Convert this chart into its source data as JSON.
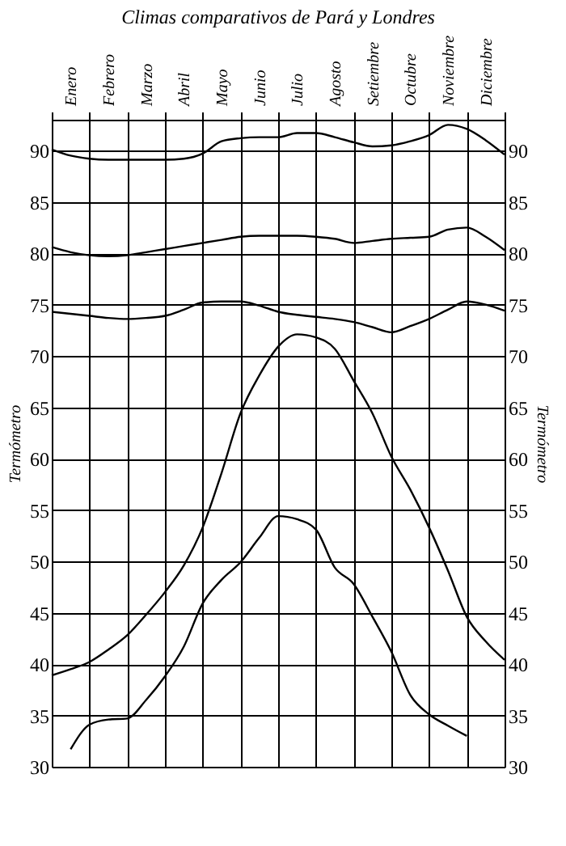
{
  "chart_data": {
    "type": "line",
    "title": "Climas comparativos de Pará y Londres",
    "ylabel": "Termómetro",
    "y2label": "Termómetro",
    "categories": [
      null,
      "Enero",
      null,
      "Febrero",
      null,
      "Marzo",
      null,
      "Abril",
      null,
      "Mayo",
      null,
      "Junio",
      null,
      "Julio",
      null,
      "Agosto",
      null,
      "Setiembre",
      null,
      "Octubre",
      null,
      "Noviembre",
      null,
      "Diciembre",
      null
    ],
    "ylim": [
      30,
      93
    ],
    "yticks": [
      30,
      35,
      40,
      45,
      50,
      55,
      60,
      65,
      70,
      75,
      80,
      85,
      90
    ],
    "y2lim": [
      30,
      93
    ],
    "y2ticks": [
      30,
      35,
      40,
      45,
      50,
      55,
      60,
      65,
      70,
      75,
      80,
      85,
      90
    ],
    "grid": true,
    "marker": "none",
    "line_style": "solid",
    "series": [
      {
        "color": "#000000",
        "values": [
          90.1,
          89.5,
          89.2,
          89.1,
          89.1,
          89.1,
          89.1,
          89.2,
          89.7,
          90.9,
          91.2,
          91.3,
          91.3,
          91.7,
          91.7,
          91.3,
          90.8,
          90.4,
          90.5,
          90.9,
          91.5,
          92.5,
          92.1,
          91.0,
          89.6
        ]
      },
      {
        "color": "#000000",
        "values": [
          80.6,
          80.1,
          79.8,
          79.7,
          79.8,
          80.1,
          80.4,
          80.7,
          81.0,
          81.3,
          81.6,
          81.7,
          81.7,
          81.7,
          81.6,
          81.4,
          81.0,
          81.2,
          81.4,
          81.5,
          81.6,
          82.3,
          82.5,
          81.6,
          80.3
        ]
      },
      {
        "color": "#000000",
        "values": [
          74.3,
          74.1,
          73.9,
          73.7,
          73.6,
          73.7,
          73.9,
          74.5,
          75.2,
          75.3,
          75.3,
          74.9,
          74.3,
          74.0,
          73.8,
          73.6,
          73.3,
          72.8,
          72.3,
          72.9,
          73.6,
          74.5,
          75.3,
          75.0,
          74.4
        ]
      },
      {
        "color": "#000000",
        "values": [
          38.9,
          39.5,
          40.2,
          41.4,
          42.8,
          44.8,
          47.0,
          49.6,
          53.3,
          58.6,
          64.4,
          68.1,
          70.9,
          72.1,
          71.8,
          70.7,
          67.6,
          64.4,
          60.2,
          57.0,
          53.3,
          49.1,
          44.6,
          42.2,
          40.4
        ]
      },
      {
        "color": "#000000",
        "axis": "y2",
        "values": [
          null,
          31.7,
          34.1,
          34.6,
          34.7,
          36.5,
          38.8,
          41.7,
          45.9,
          48.2,
          49.9,
          52.3,
          54.4,
          54.1,
          53.1,
          49.4,
          47.8,
          44.6,
          41.2,
          37.0,
          35.1,
          34.0,
          33.0,
          null,
          null
        ]
      }
    ]
  }
}
